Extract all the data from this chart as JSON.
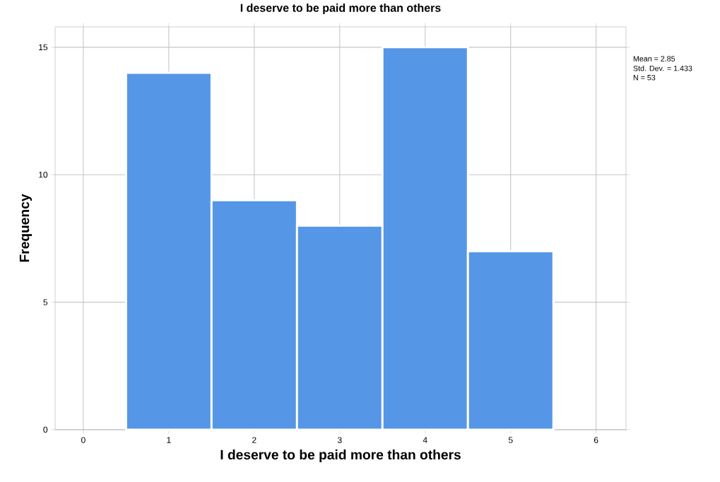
{
  "chart_data": {
    "type": "histogram",
    "title": "I deserve to be paid more than others",
    "xlabel": "I deserve to be paid more than others",
    "ylabel": "Frequency",
    "bins": [
      0.5,
      1.5,
      2.5,
      3.5,
      4.5,
      5.5
    ],
    "values": [
      14,
      9,
      8,
      15,
      7
    ],
    "color": "#5596e6",
    "xlim": [
      -0.33,
      6.35
    ],
    "ylim": [
      0,
      15.8
    ],
    "xticks": [
      0,
      1,
      2,
      3,
      4,
      5,
      6
    ],
    "yticks": [
      0,
      5,
      10,
      15
    ],
    "grid": true,
    "annotations": [
      "Mean = 2.85",
      "Std. Dev. = 1.433",
      "N = 53"
    ]
  }
}
